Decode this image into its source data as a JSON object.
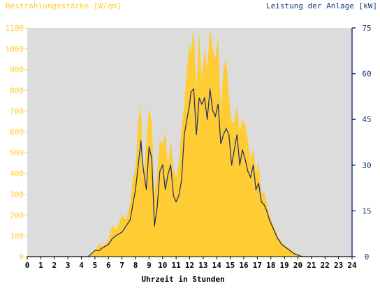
{
  "chart_data": {
    "type": "area",
    "title_left": "Bestrahlungsstärke [W/qm]",
    "title_right": "Leistung der Anlage [kW]",
    "xlabel": "Uhrzeit in Stunden",
    "xlim": [
      0,
      24
    ],
    "x_ticks": [
      "0",
      "1",
      "2",
      "3",
      "4",
      "5",
      "6",
      "7",
      "8",
      "9",
      "10",
      "11",
      "12",
      "13",
      "14",
      "15",
      "16",
      "17",
      "18",
      "19",
      "20",
      "21",
      "22",
      "23",
      "24"
    ],
    "ylim_left": [
      0,
      1100
    ],
    "y_ticks_left": [
      "0",
      "100",
      "200",
      "300",
      "400",
      "500",
      "600",
      "700",
      "800",
      "900",
      "1000",
      "1100"
    ],
    "ylim_right": [
      0,
      75
    ],
    "y_ticks_right": [
      "0",
      "15",
      "30",
      "45",
      "60",
      "75"
    ],
    "grid": false,
    "colors": {
      "irradiance": "#ffcc33",
      "power": "#1a2a6c",
      "plot_bg": "#dcdcdc",
      "left_axis_text": "#ffcc33",
      "right_axis_text": "#1a3a7a",
      "right_axis_line": "#1a3a7a"
    },
    "series": [
      {
        "name": "Bestrahlungsstärke [W/qm]",
        "axis": "left",
        "style": "area",
        "x": [
          0,
          4.5,
          5.0,
          5.3,
          5.6,
          6.0,
          6.3,
          6.6,
          7.0,
          7.3,
          7.6,
          7.8,
          8.0,
          8.2,
          8.4,
          8.5,
          8.6,
          8.8,
          9.0,
          9.2,
          9.4,
          9.6,
          9.8,
          10.0,
          10.2,
          10.4,
          10.6,
          10.8,
          11.0,
          11.2,
          11.4,
          11.6,
          11.8,
          12.0,
          12.1,
          12.3,
          12.5,
          12.7,
          12.9,
          13.1,
          13.3,
          13.5,
          13.7,
          13.9,
          14.1,
          14.3,
          14.5,
          14.7,
          14.9,
          15.1,
          15.3,
          15.5,
          15.7,
          15.9,
          16.1,
          16.3,
          16.5,
          16.7,
          16.9,
          17.1,
          17.3,
          17.5,
          17.7,
          17.9,
          18.2,
          18.5,
          18.8,
          19.1,
          19.4,
          19.7,
          20.0,
          20.3,
          20.6,
          21.0,
          24
        ],
        "values": [
          0,
          0,
          30,
          60,
          50,
          80,
          150,
          130,
          200,
          180,
          250,
          380,
          420,
          650,
          730,
          500,
          380,
          550,
          720,
          640,
          300,
          400,
          560,
          540,
          600,
          430,
          560,
          420,
          380,
          450,
          620,
          730,
          900,
          1030,
          980,
          1100,
          800,
          1080,
          850,
          1000,
          900,
          1100,
          1000,
          950,
          1060,
          700,
          900,
          950,
          780,
          640,
          650,
          720,
          600,
          660,
          640,
          560,
          470,
          520,
          400,
          460,
          300,
          310,
          260,
          200,
          150,
          100,
          70,
          50,
          40,
          20,
          10,
          5,
          0,
          0,
          0
        ]
      },
      {
        "name": "Leistung der Anlage [kW]",
        "axis": "right",
        "style": "line",
        "x": [
          0,
          4.5,
          5.0,
          5.3,
          5.6,
          6.0,
          6.3,
          6.6,
          7.0,
          7.3,
          7.6,
          7.8,
          8.0,
          8.2,
          8.4,
          8.5,
          8.6,
          8.8,
          9.0,
          9.2,
          9.4,
          9.6,
          9.8,
          10.0,
          10.2,
          10.4,
          10.6,
          10.8,
          11.0,
          11.2,
          11.4,
          11.6,
          11.8,
          12.0,
          12.1,
          12.3,
          12.5,
          12.7,
          12.9,
          13.1,
          13.3,
          13.5,
          13.7,
          13.9,
          14.1,
          14.3,
          14.5,
          14.7,
          14.9,
          15.1,
          15.3,
          15.5,
          15.7,
          15.9,
          16.1,
          16.3,
          16.5,
          16.7,
          16.9,
          17.1,
          17.3,
          17.5,
          17.7,
          17.9,
          18.2,
          18.5,
          18.8,
          19.1,
          19.4,
          19.7,
          20.0,
          20.3,
          20.6,
          21.0,
          24
        ],
        "values": [
          0,
          0,
          2,
          2,
          3,
          4,
          6,
          7,
          8,
          10,
          12,
          17,
          22,
          30,
          38,
          32,
          28,
          22,
          36,
          32,
          10,
          16,
          28,
          30,
          22,
          27,
          30,
          20,
          18,
          20,
          25,
          40,
          45,
          50,
          54,
          55,
          40,
          52,
          50,
          52,
          45,
          55,
          48,
          46,
          50,
          37,
          40,
          42,
          40,
          30,
          35,
          40,
          30,
          35,
          32,
          28,
          26,
          30,
          22,
          24,
          18,
          17,
          15,
          12,
          9,
          6,
          4,
          3,
          2,
          1,
          0.5,
          0,
          0,
          0,
          0
        ]
      }
    ]
  }
}
